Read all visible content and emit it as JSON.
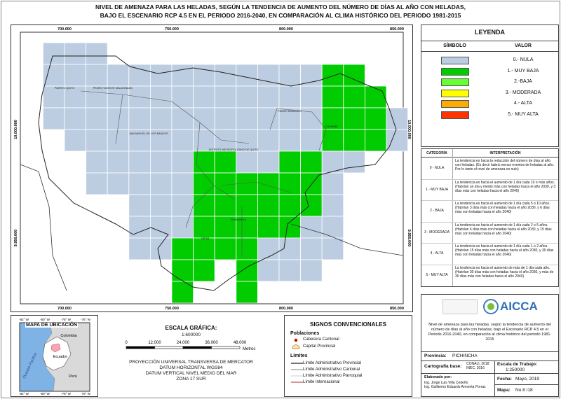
{
  "title": [
    "NIVEL DE AMENAZA PARA LAS HELADAS, SEGÚN LA TENDENCIA DE AUMENTO DEL NÚMERO DE DÍAS AL AÑO CON HELADAS,",
    "BAJO EL ESCENARIO RCP 4.5 EN EL PERIODO 2016-2040, EN COMPARACIÓN AL CLIMA HISTÓRICO DEL PERIODO 1981-2015"
  ],
  "map": {
    "x_labels": [
      "700.000",
      "750.000",
      "800.000",
      "850.000"
    ],
    "y_labels": [
      "10.000.000",
      "9.950.000"
    ],
    "places": [
      "PUERTO QUITO",
      "PEDRO VICENTE MALDONADO",
      "SAN MIGUEL DE LOS BANCOS",
      "DISTRITO METROPOLITANO DE QUITO",
      "PEDRO MONCAYO",
      "CAYAMBE",
      "RUMIÑAHUI",
      "MEJIA"
    ]
  },
  "legend": {
    "title": "LEYENDA",
    "headers": [
      "SÍMBOLO",
      "VALOR"
    ],
    "items": [
      {
        "label": "0.- NULA",
        "color": "#bccde2"
      },
      {
        "label": "1.- MUY BAJA",
        "color": "#00cc00"
      },
      {
        "label": "2.-BAJA",
        "color": "#66ff33"
      },
      {
        "label": "3.- MODERADA",
        "color": "#ffff00"
      },
      {
        "label": "4.- ALTA",
        "color": "#ffaa00"
      },
      {
        "label": "5.- MUY ALTA",
        "color": "#ff3300"
      }
    ]
  },
  "interpretation": {
    "headers": [
      "CATEGORÍA",
      "INTERPRETACIÓN"
    ],
    "rows": [
      [
        "0 - NULA",
        "La tendencia es hacia la reducción del número de días al año con heladas. (Es decir habrá menos eventos de heladas al año. Por lo tanto el nivel de amenaza es nulo)"
      ],
      [
        "1 - MUY BAJA",
        "La tendencia es hacia el aumento de 1 día cada 10 o más años. (Habrían un día y medio más con heladas hacia el año 2030, y 3 días más con heladas hacia el año 2040)"
      ],
      [
        "2 - BAJA",
        "La tendencia es hacia el aumento de 1 día cada 5 o 10 años. (Habrían 3 días más con heladas hacia el año 2030, y 6 días más con heladas hacia el año 2040)"
      ],
      [
        "3 - MODERADA",
        "La tendencia es hacia el aumento de 1 día cada 2 o 5 años. (Habrían 6 días más con heladas hacia el año 2030, y 15 días más con heladas hacia el año 2040)"
      ],
      [
        "4 - ALTA",
        "La tendencia es hacia el aumento de 1 día cada 1 o 2 años. (Habrían 15 días más con heladas hacia el año 2030, y 30 días más con heladas hacia el año 2040)"
      ],
      [
        "5 - MUY ALTA",
        "La tendencia es hacia el aumento de más de 1 día cada año. (Habrían 30 días más con heladas hacia el año 2030, y más de 30 días más con heladas hacia el año 2040)"
      ]
    ]
  },
  "location_map": {
    "title": "MAPA DE UBICACIÓN",
    "labels": [
      "Colombia",
      "Ecuador",
      "Perú",
      "Oceano Pacifico"
    ],
    "lon_labels": [
      "-82° W",
      "-80° W",
      "-78° W",
      "-76° W"
    ]
  },
  "scale": {
    "title": "ESCALA GRÁFICA:",
    "ratio": "1:600000",
    "ticks": [
      "0",
      "12.000",
      "24.000",
      "36.000",
      "48.000"
    ],
    "unit": "Metros",
    "projection": [
      "PROYECCIÓN UNIVERSAL TRANSVERSA DE MERCATOR",
      "DATUM HORIZONTAL WGS84",
      "DATUM VERTICAL NIVEL MEDIO DEL MAR",
      "ZONA 17 SUR"
    ]
  },
  "signs": {
    "title": "SIGNOS CONVENCIONALES",
    "populations_title": "Poblaciones",
    "populations": [
      "Cabecera Cantonal",
      "Capital Provincial"
    ],
    "limits_title": "Límites",
    "limits": [
      "Límite Administrativo Provincial",
      "Límite Administrativo Cantonal",
      "Límite Administrativo Parroquial",
      "Límite Internacional"
    ]
  },
  "info": {
    "logo": "AICCA",
    "description": "Nivel de amenaza para las heladas, según la tendencia de aumento del número de días al año con heladas, bajo el Escenario RCP 4.5 en el Periodo 2016-2040, en comparación al clima histórico del periodo 1981-2015",
    "province_label": "Provincia:",
    "province": "PICHINCHA",
    "base_label": "Cartografía base:",
    "base": [
      "CONALI, 2018",
      "INEC, 2016"
    ],
    "scale_label": "Escala de Trabajo:",
    "scale": "1:250000",
    "author_label": "Elaborado por:",
    "authors": [
      "Ing. Jorge Luis Villa Cedeño",
      "Ing. Guillermo Eduardo Armenta Porras"
    ],
    "date_label": "Fecha:",
    "date": "Mayo, 2019",
    "map_label": "Mapa:",
    "map": "No 8 /18"
  }
}
